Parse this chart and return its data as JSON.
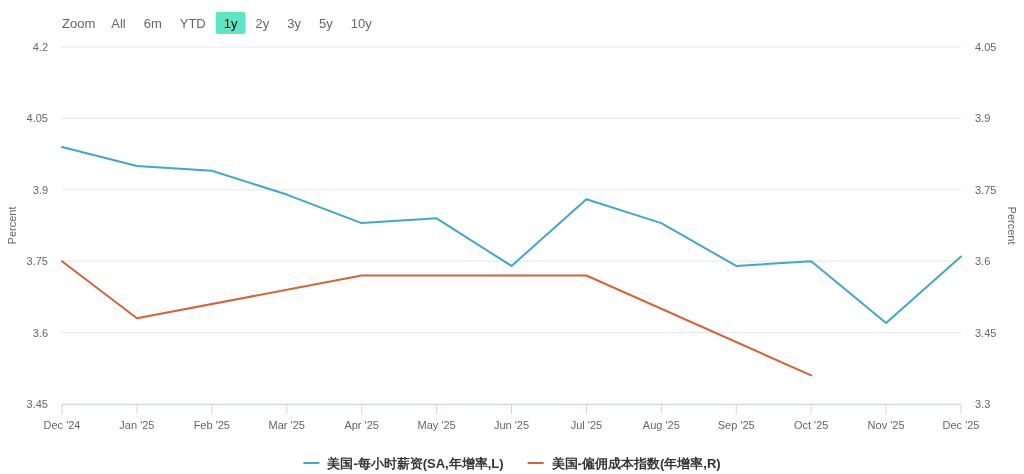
{
  "chart_data": {
    "type": "line",
    "categories": [
      "Dec '24",
      "Jan '25",
      "Feb '25",
      "Mar '25",
      "Apr '25",
      "May '25",
      "Jun '25",
      "Jul '25",
      "Aug '25",
      "Sep '25",
      "Oct '25",
      "Nov '25",
      "Dec '25"
    ],
    "series": [
      {
        "name": "美国-每小时薪资(SA,年增率,L)",
        "color": "#3fa9c8",
        "values": [
          3.99,
          3.95,
          3.94,
          3.89,
          3.83,
          3.84,
          3.74,
          3.88,
          3.83,
          3.74,
          3.75,
          3.62,
          3.76
        ]
      },
      {
        "name": "美国-僱佣成本指数(年增率,R)",
        "color": "#d8613c",
        "axis": "y2",
        "values": [
          3.6,
          3.48,
          null,
          null,
          3.57,
          null,
          null,
          3.57,
          null,
          null,
          3.36,
          null,
          null
        ]
      }
    ],
    "ylabel": "Percent",
    "y2label": "Percent",
    "ylim": [
      3.45,
      4.2
    ],
    "yticks": [
      3.45,
      3.6,
      3.75,
      3.9,
      4.05,
      4.2
    ],
    "y2lim": [
      3.3,
      4.05
    ],
    "y2ticks": [
      3.3,
      3.45,
      3.6,
      3.75,
      3.9,
      4.05
    ],
    "grid": "y",
    "legend": "bottom",
    "annotations": [
      "Zoom",
      "All",
      "6m",
      "YTD",
      "1y",
      "2y",
      "3y",
      "5y",
      "10y"
    ]
  }
}
